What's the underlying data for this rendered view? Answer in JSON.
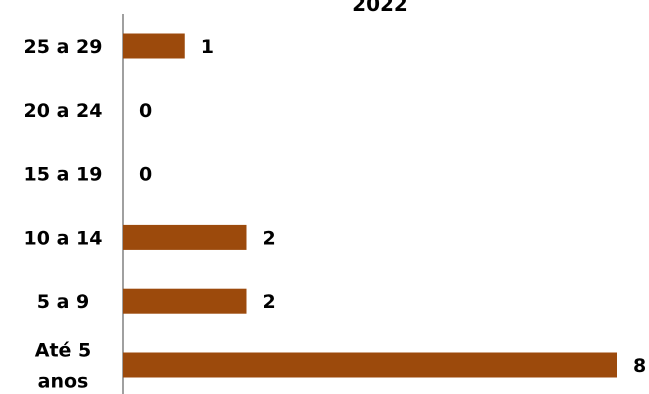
{
  "chart_data": {
    "type": "bar",
    "orientation": "horizontal",
    "title": "2022",
    "categories": [
      "25 a 29",
      "20 a 24",
      "15 a 19",
      "10 a 14",
      "5 a 9",
      "Até 5 anos"
    ],
    "category_lines": [
      [
        "25 a 29"
      ],
      [
        "20 a 24"
      ],
      [
        "15 a 19"
      ],
      [
        "10 a 14"
      ],
      [
        "5 a 9"
      ],
      [
        "Até 5",
        "anos"
      ]
    ],
    "values": [
      1,
      0,
      0,
      2,
      2,
      8
    ],
    "data_labels": [
      "1",
      "0",
      "0",
      "2",
      "2",
      "8"
    ],
    "xlim": [
      0,
      8
    ],
    "grid": false,
    "legend": "none",
    "bar_color": "#9C4A0C",
    "axis_color": "#808080",
    "text_color": "#000000"
  }
}
